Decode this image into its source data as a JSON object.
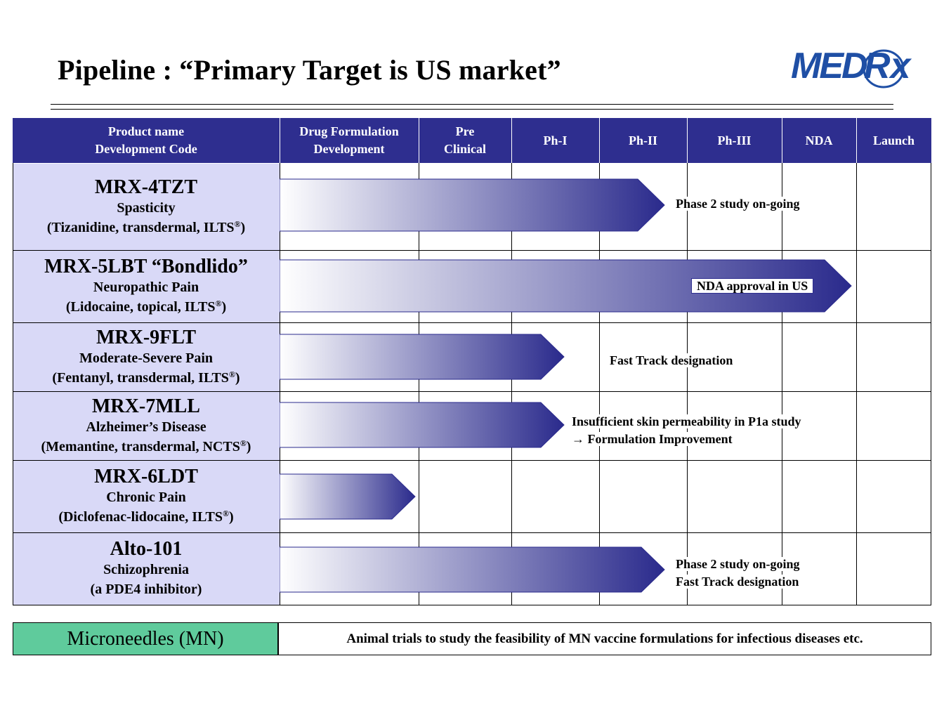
{
  "title": "Pipeline : “Primary Target is US market”",
  "logo": {
    "text": "MED",
    "rx": "Rx",
    "color": "#1f4fa5"
  },
  "header": {
    "background": "#2e2e8f",
    "product": [
      "Product name",
      "Development Code"
    ],
    "drug_formulation": [
      "Drug Formulation",
      "Development"
    ],
    "pre_clinical": [
      "Pre",
      "Clinical"
    ],
    "ph1": "Ph-I",
    "ph2": "Ph-II",
    "ph3": "Ph-III",
    "nda": "NDA",
    "launch": "Launch"
  },
  "products": [
    {
      "code": "MRX-4TZT",
      "indication": "Spasticity",
      "detail": "(Tizanidine, transdermal, ILTS",
      "detail_mark": "®",
      "detail_end": ")",
      "progress_stage": "Ph-II",
      "note": [
        "Phase 2 study on-going"
      ]
    },
    {
      "code": "MRX-5LBT “Bondlido”",
      "indication": "Neuropathic Pain",
      "detail": "(Lidocaine, topical, ILTS",
      "detail_mark": "®",
      "detail_end": ")",
      "progress_stage": "NDA",
      "note": [
        "NDA approval in US"
      ]
    },
    {
      "code": "MRX-9FLT",
      "indication": "Moderate-Severe Pain",
      "detail": "(Fentanyl, transdermal, ILTS",
      "detail_mark": "®",
      "detail_end": ")",
      "progress_stage": "Ph-I",
      "note": [
        "Fast Track designation"
      ]
    },
    {
      "code": "MRX-7MLL",
      "indication": "Alzheimer’s Disease",
      "detail": "(Memantine, transdermal, NCTS",
      "detail_mark": "®",
      "detail_end": ")",
      "progress_stage": "Ph-I",
      "note": [
        "Insufficient skin permeability in P1a study",
        "→ Formulation Improvement"
      ]
    },
    {
      "code": "MRX-6LDT",
      "indication": "Chronic Pain",
      "detail": "(Diclofenac-lidocaine, ILTS",
      "detail_mark": "®",
      "detail_end": ")",
      "progress_stage": "Drug Formulation Development",
      "note": []
    },
    {
      "code": "Alto-101",
      "indication": "Schizophrenia",
      "detail": "(a PDE4 inhibitor)",
      "detail_mark": "",
      "detail_end": "",
      "progress_stage": "Ph-II",
      "note": [
        "Phase 2 study on-going",
        "Fast Track designation"
      ]
    }
  ],
  "colors": {
    "name_cell": "#d9d9f7",
    "arrow_start": "#ffffff",
    "arrow_end": "#2a2a8c",
    "microneedles": "#5fcb9c"
  },
  "microneedles": {
    "label": "Microneedles (MN)",
    "description": "Animal trials to study the feasibility of MN vaccine formulations for infectious diseases etc."
  }
}
